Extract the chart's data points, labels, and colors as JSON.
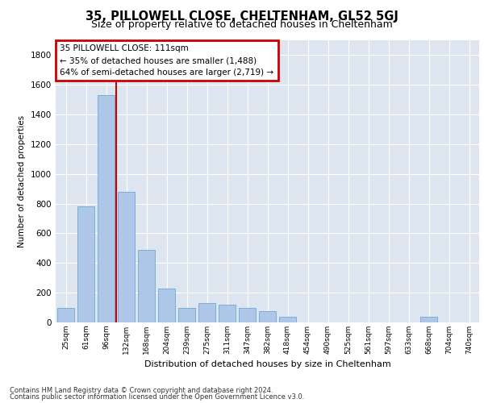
{
  "title_line1": "35, PILLOWELL CLOSE, CHELTENHAM, GL52 5GJ",
  "title_line2": "Size of property relative to detached houses in Cheltenham",
  "xlabel": "Distribution of detached houses by size in Cheltenham",
  "ylabel": "Number of detached properties",
  "footer_line1": "Contains HM Land Registry data © Crown copyright and database right 2024.",
  "footer_line2": "Contains public sector information licensed under the Open Government Licence v3.0.",
  "categories": [
    "25sqm",
    "61sqm",
    "96sqm",
    "132sqm",
    "168sqm",
    "204sqm",
    "239sqm",
    "275sqm",
    "311sqm",
    "347sqm",
    "382sqm",
    "418sqm",
    "454sqm",
    "490sqm",
    "525sqm",
    "561sqm",
    "597sqm",
    "633sqm",
    "668sqm",
    "704sqm",
    "740sqm"
  ],
  "values": [
    100,
    780,
    1530,
    880,
    490,
    230,
    100,
    130,
    120,
    100,
    75,
    40,
    0,
    0,
    0,
    0,
    0,
    0,
    40,
    0,
    0
  ],
  "bar_color": "#aec6e8",
  "bar_edge_color": "#6fa8d4",
  "vline_x": 2.5,
  "vline_color": "#cc0000",
  "annotation_title": "35 PILLOWELL CLOSE: 111sqm",
  "annotation_line2": "← 35% of detached houses are smaller (1,488)",
  "annotation_line3": "64% of semi-detached houses are larger (2,719) →",
  "annotation_box_color": "#cc0000",
  "ylim": [
    0,
    1900
  ],
  "yticks": [
    0,
    200,
    400,
    600,
    800,
    1000,
    1200,
    1400,
    1600,
    1800
  ],
  "bg_color": "#dde5f0",
  "plot_bg_color": "#dde5f0"
}
